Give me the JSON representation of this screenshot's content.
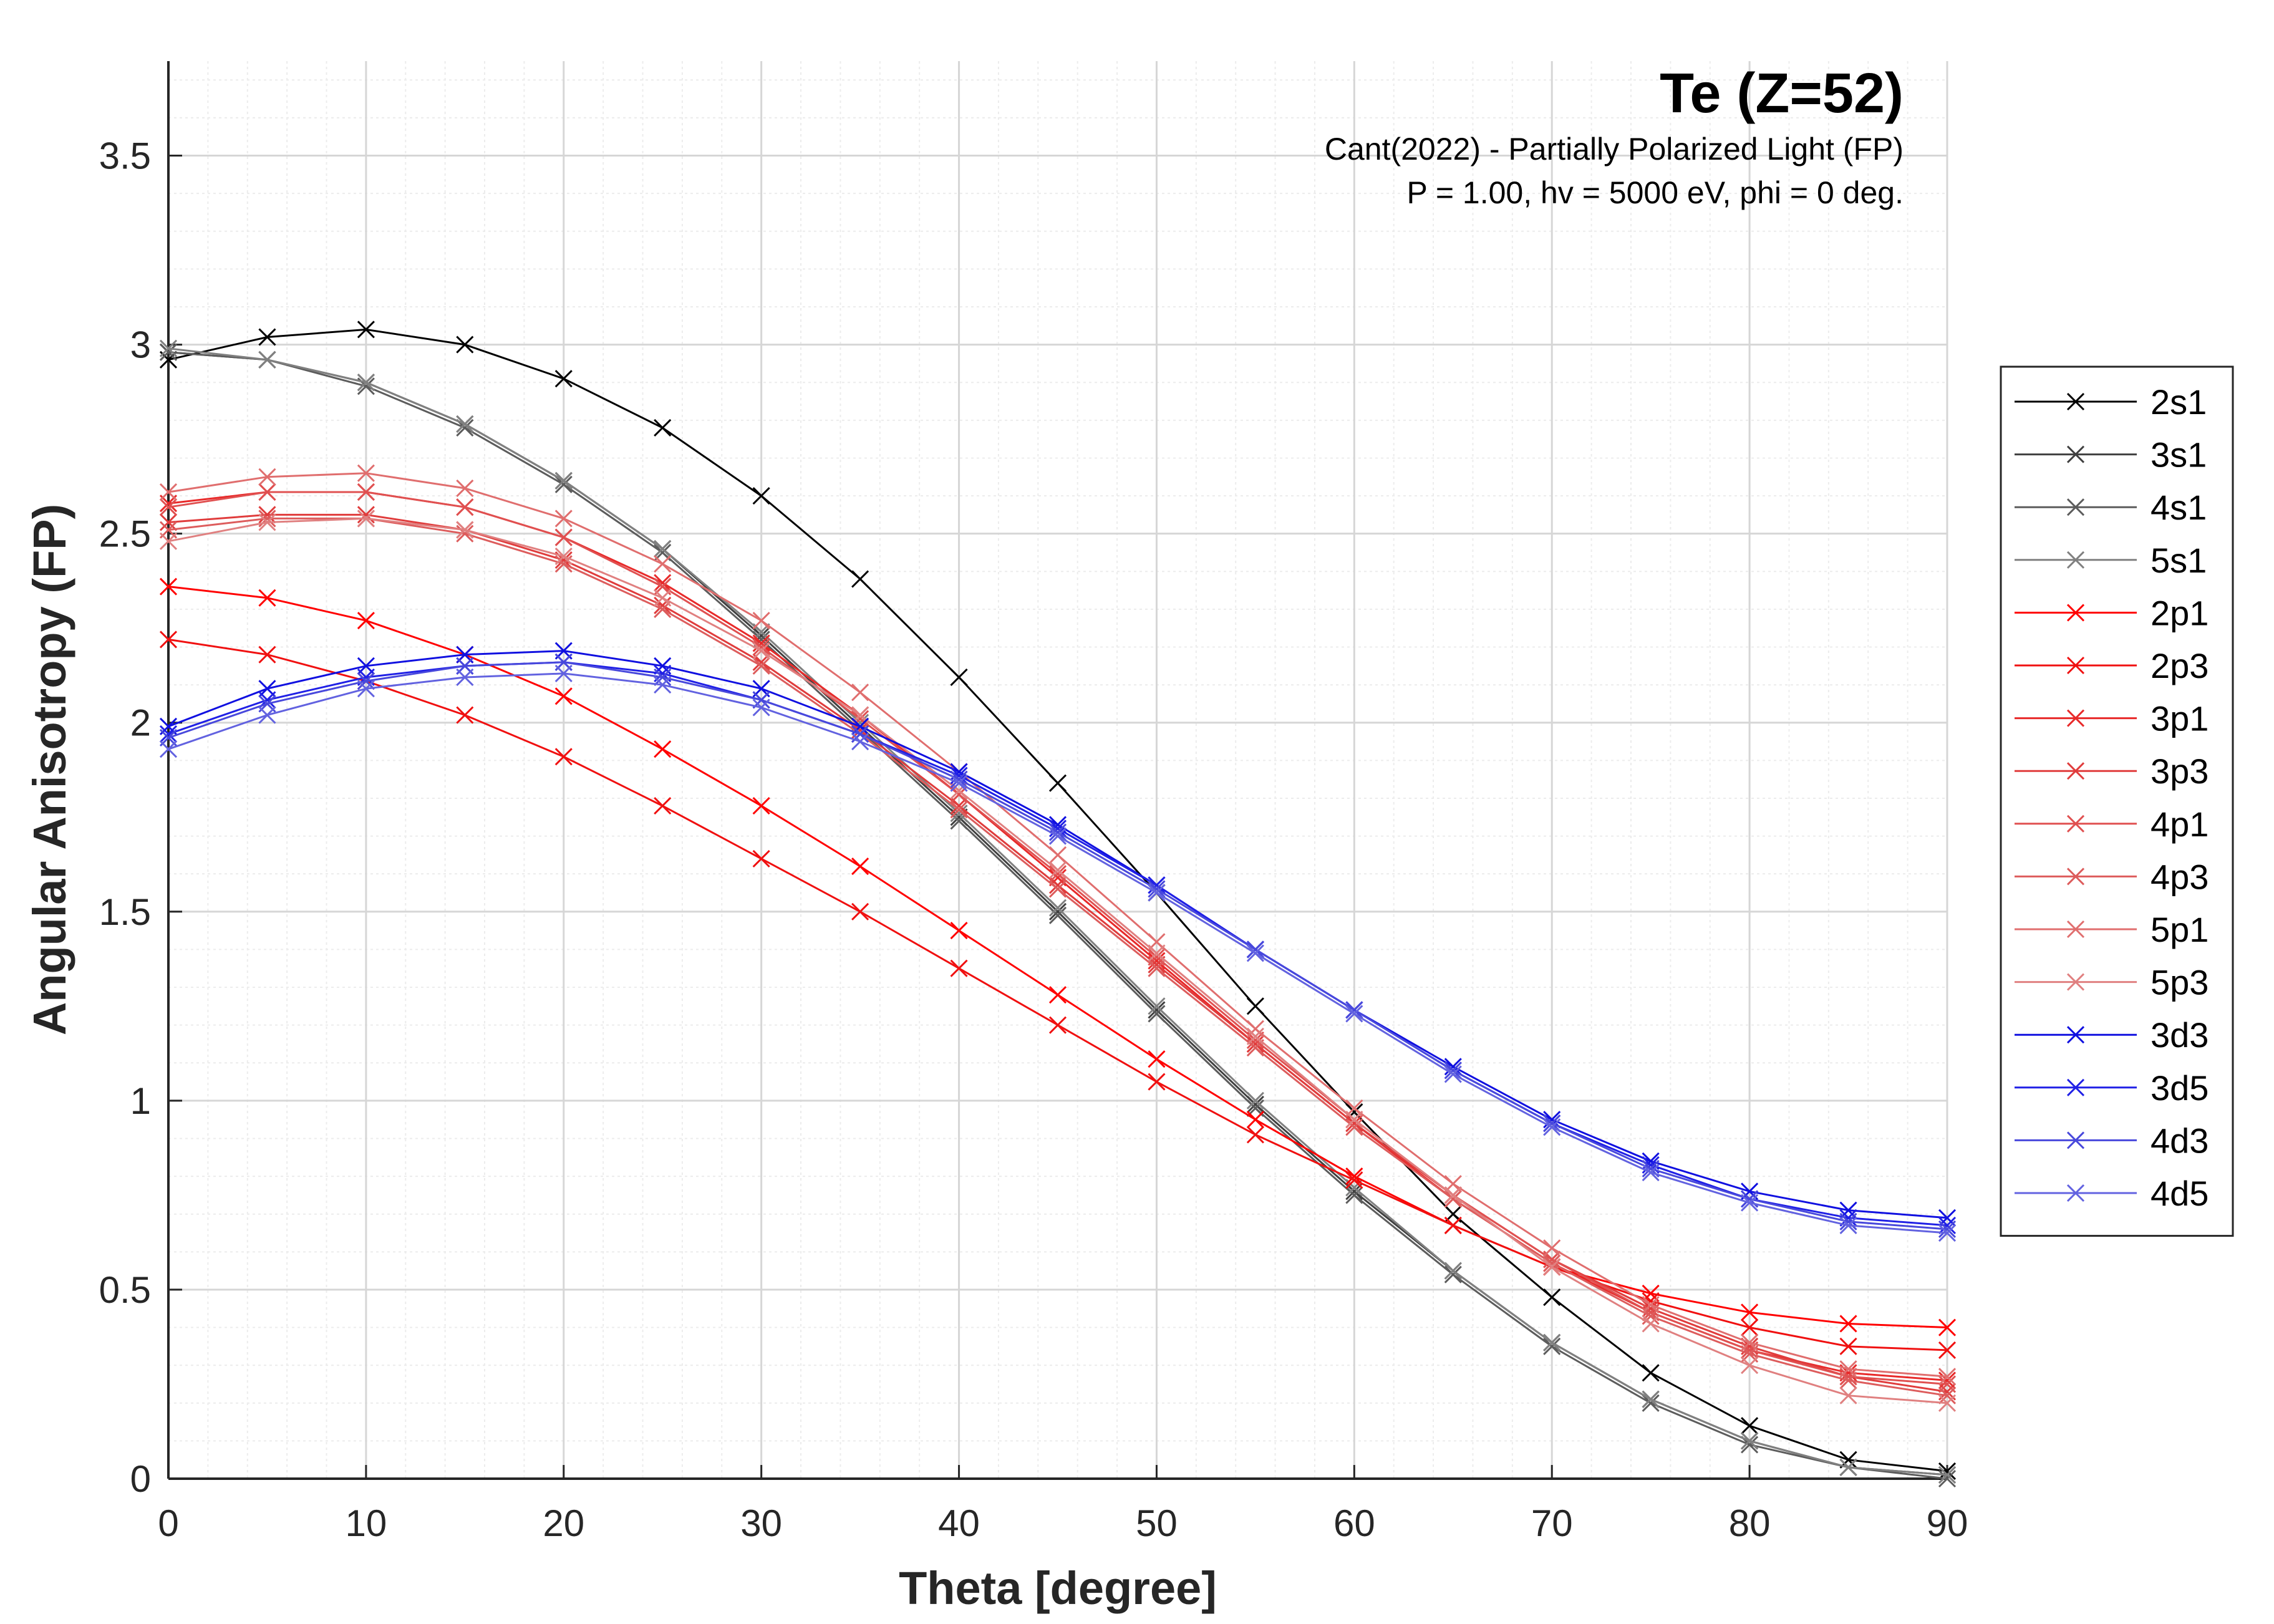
{
  "chart_data": {
    "type": "line",
    "title": "Te (Z=52)",
    "subtitle_lines": [
      "Cant(2022) - Partially Polarized Light (FP)",
      "P = 1.00, hv = 5000 eV, phi = 0 deg."
    ],
    "xlabel": "Theta [degree]",
    "ylabel": "Angular Anisotropy (FP)",
    "xlim": [
      0,
      90
    ],
    "ylim": [
      0,
      3.75
    ],
    "xticks": [
      0,
      10,
      20,
      30,
      40,
      50,
      60,
      70,
      80,
      90
    ],
    "yticks": [
      0,
      0.5,
      1,
      1.5,
      2,
      2.5,
      3,
      3.5
    ],
    "ytick_labels": [
      "0",
      "0.5",
      "1",
      "1.5",
      "2",
      "2.5",
      "3",
      "3.5"
    ],
    "grid": true,
    "minor_grid": true,
    "legend_position": "outside-right",
    "marker": "x",
    "x": [
      0,
      5,
      10,
      15,
      20,
      25,
      30,
      35,
      40,
      45,
      50,
      55,
      60,
      65,
      70,
      75,
      80,
      85,
      90
    ],
    "series": [
      {
        "name": "2s1",
        "color": "#000000",
        "values": [
          2.96,
          3.02,
          3.04,
          3.0,
          2.91,
          2.78,
          2.6,
          2.38,
          2.12,
          1.84,
          1.55,
          1.25,
          0.97,
          0.7,
          0.48,
          0.28,
          0.14,
          0.05,
          0.02
        ]
      },
      {
        "name": "3s1",
        "color": "#404040",
        "values": [
          2.98,
          2.96,
          2.9,
          2.79,
          2.64,
          2.46,
          2.23,
          1.99,
          1.75,
          1.5,
          1.24,
          0.99,
          0.76,
          0.55,
          0.36,
          0.21,
          0.1,
          0.03,
          0.01
        ]
      },
      {
        "name": "4s1",
        "color": "#5c5c5c",
        "values": [
          2.98,
          2.96,
          2.89,
          2.78,
          2.63,
          2.45,
          2.22,
          1.98,
          1.74,
          1.49,
          1.23,
          0.98,
          0.75,
          0.54,
          0.35,
          0.2,
          0.09,
          0.03,
          0.0
        ]
      },
      {
        "name": "5s1",
        "color": "#808080",
        "values": [
          2.99,
          2.96,
          2.9,
          2.79,
          2.64,
          2.46,
          2.24,
          2.0,
          1.76,
          1.51,
          1.25,
          1.0,
          0.77,
          0.55,
          0.36,
          0.21,
          0.1,
          0.03,
          0.01
        ]
      },
      {
        "name": "2p1",
        "color": "#ff0000",
        "values": [
          2.36,
          2.33,
          2.27,
          2.18,
          2.07,
          1.93,
          1.78,
          1.62,
          1.45,
          1.28,
          1.11,
          0.95,
          0.8,
          0.67,
          0.56,
          0.49,
          0.44,
          0.41,
          0.4
        ]
      },
      {
        "name": "2p3",
        "color": "#f01010",
        "values": [
          2.22,
          2.18,
          2.11,
          2.02,
          1.91,
          1.78,
          1.64,
          1.5,
          1.35,
          1.2,
          1.05,
          0.91,
          0.79,
          0.67,
          0.56,
          0.47,
          0.4,
          0.35,
          0.34
        ]
      },
      {
        "name": "3p1",
        "color": "#e82a2a",
        "values": [
          2.58,
          2.61,
          2.61,
          2.57,
          2.49,
          2.37,
          2.21,
          2.02,
          1.81,
          1.59,
          1.37,
          1.15,
          0.94,
          0.74,
          0.57,
          0.44,
          0.34,
          0.28,
          0.26
        ]
      },
      {
        "name": "3p3",
        "color": "#e03c3c",
        "values": [
          2.53,
          2.55,
          2.55,
          2.51,
          2.43,
          2.31,
          2.16,
          1.98,
          1.78,
          1.57,
          1.36,
          1.15,
          0.94,
          0.75,
          0.58,
          0.45,
          0.35,
          0.27,
          0.23
        ]
      },
      {
        "name": "4p1",
        "color": "#e05050",
        "values": [
          2.57,
          2.61,
          2.61,
          2.57,
          2.49,
          2.36,
          2.2,
          2.01,
          1.81,
          1.6,
          1.38,
          1.16,
          0.95,
          0.75,
          0.58,
          0.44,
          0.34,
          0.27,
          0.25
        ]
      },
      {
        "name": "4p3",
        "color": "#dd5c5c",
        "values": [
          2.51,
          2.54,
          2.54,
          2.5,
          2.42,
          2.3,
          2.15,
          1.97,
          1.77,
          1.56,
          1.35,
          1.14,
          0.93,
          0.74,
          0.57,
          0.43,
          0.33,
          0.26,
          0.22
        ]
      },
      {
        "name": "5p1",
        "color": "#e06e6e",
        "values": [
          2.61,
          2.65,
          2.66,
          2.62,
          2.54,
          2.42,
          2.27,
          2.08,
          1.87,
          1.65,
          1.42,
          1.19,
          0.98,
          0.78,
          0.61,
          0.46,
          0.36,
          0.29,
          0.27
        ]
      },
      {
        "name": "5p3",
        "color": "#e08080",
        "values": [
          2.48,
          2.53,
          2.54,
          2.51,
          2.44,
          2.33,
          2.19,
          2.02,
          1.82,
          1.61,
          1.39,
          1.17,
          0.95,
          0.75,
          0.56,
          0.41,
          0.3,
          0.22,
          0.2
        ]
      },
      {
        "name": "3d3",
        "color": "#1010e0",
        "values": [
          1.99,
          2.09,
          2.15,
          2.18,
          2.19,
          2.15,
          2.09,
          1.99,
          1.87,
          1.73,
          1.57,
          1.4,
          1.24,
          1.09,
          0.95,
          0.84,
          0.76,
          0.71,
          0.69
        ]
      },
      {
        "name": "3d5",
        "color": "#2020e6",
        "values": [
          1.97,
          2.06,
          2.12,
          2.15,
          2.16,
          2.13,
          2.06,
          1.97,
          1.86,
          1.72,
          1.57,
          1.4,
          1.24,
          1.08,
          0.94,
          0.83,
          0.74,
          0.69,
          0.67
        ]
      },
      {
        "name": "4d3",
        "color": "#4848dc",
        "values": [
          1.96,
          2.05,
          2.11,
          2.15,
          2.16,
          2.12,
          2.06,
          1.97,
          1.85,
          1.71,
          1.56,
          1.4,
          1.24,
          1.08,
          0.94,
          0.82,
          0.74,
          0.68,
          0.66
        ]
      },
      {
        "name": "4d5",
        "color": "#6262e0",
        "values": [
          1.93,
          2.02,
          2.09,
          2.12,
          2.13,
          2.1,
          2.04,
          1.95,
          1.84,
          1.7,
          1.55,
          1.39,
          1.23,
          1.07,
          0.93,
          0.81,
          0.73,
          0.67,
          0.65
        ]
      }
    ]
  }
}
